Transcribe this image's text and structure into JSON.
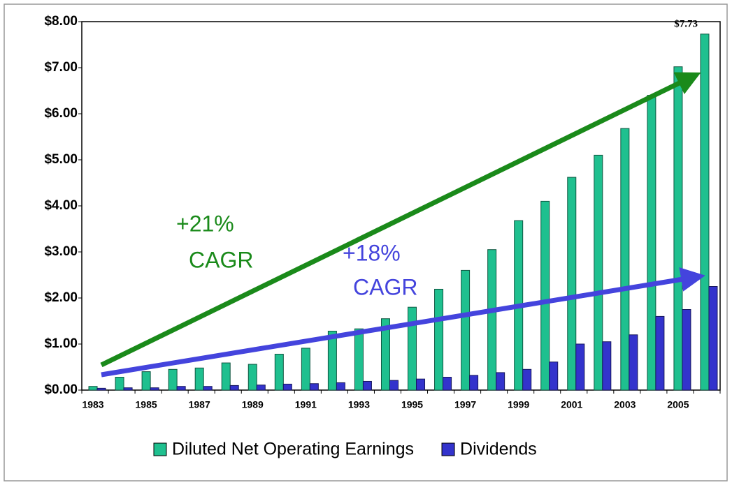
{
  "chart_data": {
    "type": "bar",
    "categories": [
      "1983",
      null,
      "1985",
      null,
      "1987",
      null,
      "1989",
      null,
      "1991",
      null,
      "1993",
      null,
      "1995",
      null,
      "1997",
      null,
      "1999",
      null,
      "2001",
      null,
      "2003",
      null,
      "2005",
      null
    ],
    "series": [
      {
        "name": "Diluted Net Operating Earnings",
        "color": "#1fc08f",
        "values": [
          0.08,
          0.28,
          0.4,
          0.45,
          0.48,
          0.59,
          0.56,
          0.78,
          0.91,
          1.28,
          1.33,
          1.55,
          1.8,
          2.19,
          2.6,
          3.05,
          3.68,
          4.1,
          4.62,
          5.1,
          5.68,
          6.4,
          7.02,
          7.73
        ],
        "value_labels": [
          null,
          null,
          null,
          null,
          null,
          null,
          null,
          null,
          null,
          null,
          null,
          null,
          null,
          null,
          null,
          null,
          null,
          null,
          null,
          null,
          null,
          null,
          null,
          "$7.73"
        ]
      },
      {
        "name": "Dividends",
        "color": "#3333cc",
        "values": [
          0.04,
          0.05,
          0.05,
          0.08,
          0.08,
          0.1,
          0.11,
          0.13,
          0.14,
          0.16,
          0.19,
          0.21,
          0.24,
          0.28,
          0.32,
          0.38,
          0.45,
          0.61,
          1.0,
          1.05,
          1.2,
          1.6,
          1.75,
          2.25
        ]
      }
    ],
    "ylim": [
      0,
      8
    ],
    "yticks": [
      {
        "value": 0,
        "label": "$0.00"
      },
      {
        "value": 1,
        "label": "$1.00"
      },
      {
        "value": 2,
        "label": "$2.00"
      },
      {
        "value": 3,
        "label": "$3.00"
      },
      {
        "value": 4,
        "label": "$4.00"
      },
      {
        "value": 5,
        "label": "$5.00"
      },
      {
        "value": 6,
        "label": "$6.00"
      },
      {
        "value": 7,
        "label": "$7.00"
      },
      {
        "value": 8,
        "label": "$8.00"
      }
    ],
    "grid": false,
    "legend": "bottom",
    "annotations": [
      {
        "lines": [
          "+21%",
          "CAGR"
        ],
        "color": "#1a8a1a"
      },
      {
        "lines": [
          "+18%",
          "CAGR"
        ],
        "color": "#4444dd"
      }
    ]
  }
}
